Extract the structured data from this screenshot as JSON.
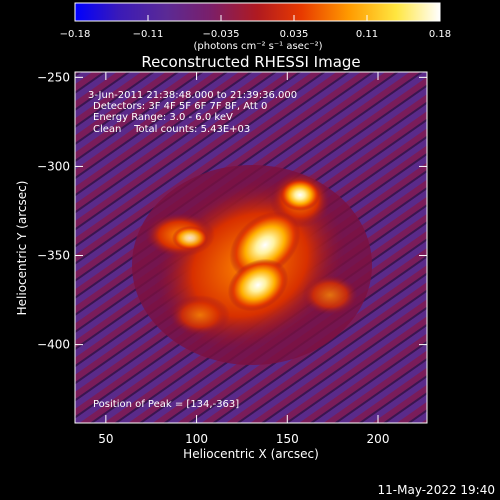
{
  "colorbar": {
    "ticks": [
      "-0.18",
      "-0.11",
      "-0.035",
      "0.035",
      "0.11",
      "0.18"
    ],
    "units_line": "(photons cm⁻² s⁻¹ asec⁻²)",
    "stops": [
      "#0000ff",
      "#3a1ab8",
      "#5b2a95",
      "#7a1f6a",
      "#b01a20",
      "#e83a00",
      "#ff9a00",
      "#ffe640",
      "#ffffff"
    ]
  },
  "title": "Reconstructed RHESSI Image",
  "info": {
    "time_range": "3-Jun-2011 21:38:48.000 to 21:39:36.000",
    "detectors": "Detectors: 3F 4F 5F 6F 7F 8F, Att 0",
    "energy": "Energy Range: 3.0 - 6.0 keV",
    "clean": "Clean    Total counts: 5.43E+03",
    "peak": "Position of Peak = [134,-363]"
  },
  "axes": {
    "xlabel": "Heliocentric X (arcsec)",
    "ylabel": "Heliocentric Y (arcsec)",
    "xlim": [
      33,
      227
    ],
    "ylim": [
      -444,
      -247
    ],
    "xticks": [
      50,
      100,
      150,
      200
    ],
    "yticks": [
      -250,
      -300,
      -350,
      -400
    ]
  },
  "footer_timestamp": "11-May-2022 19:40"
}
